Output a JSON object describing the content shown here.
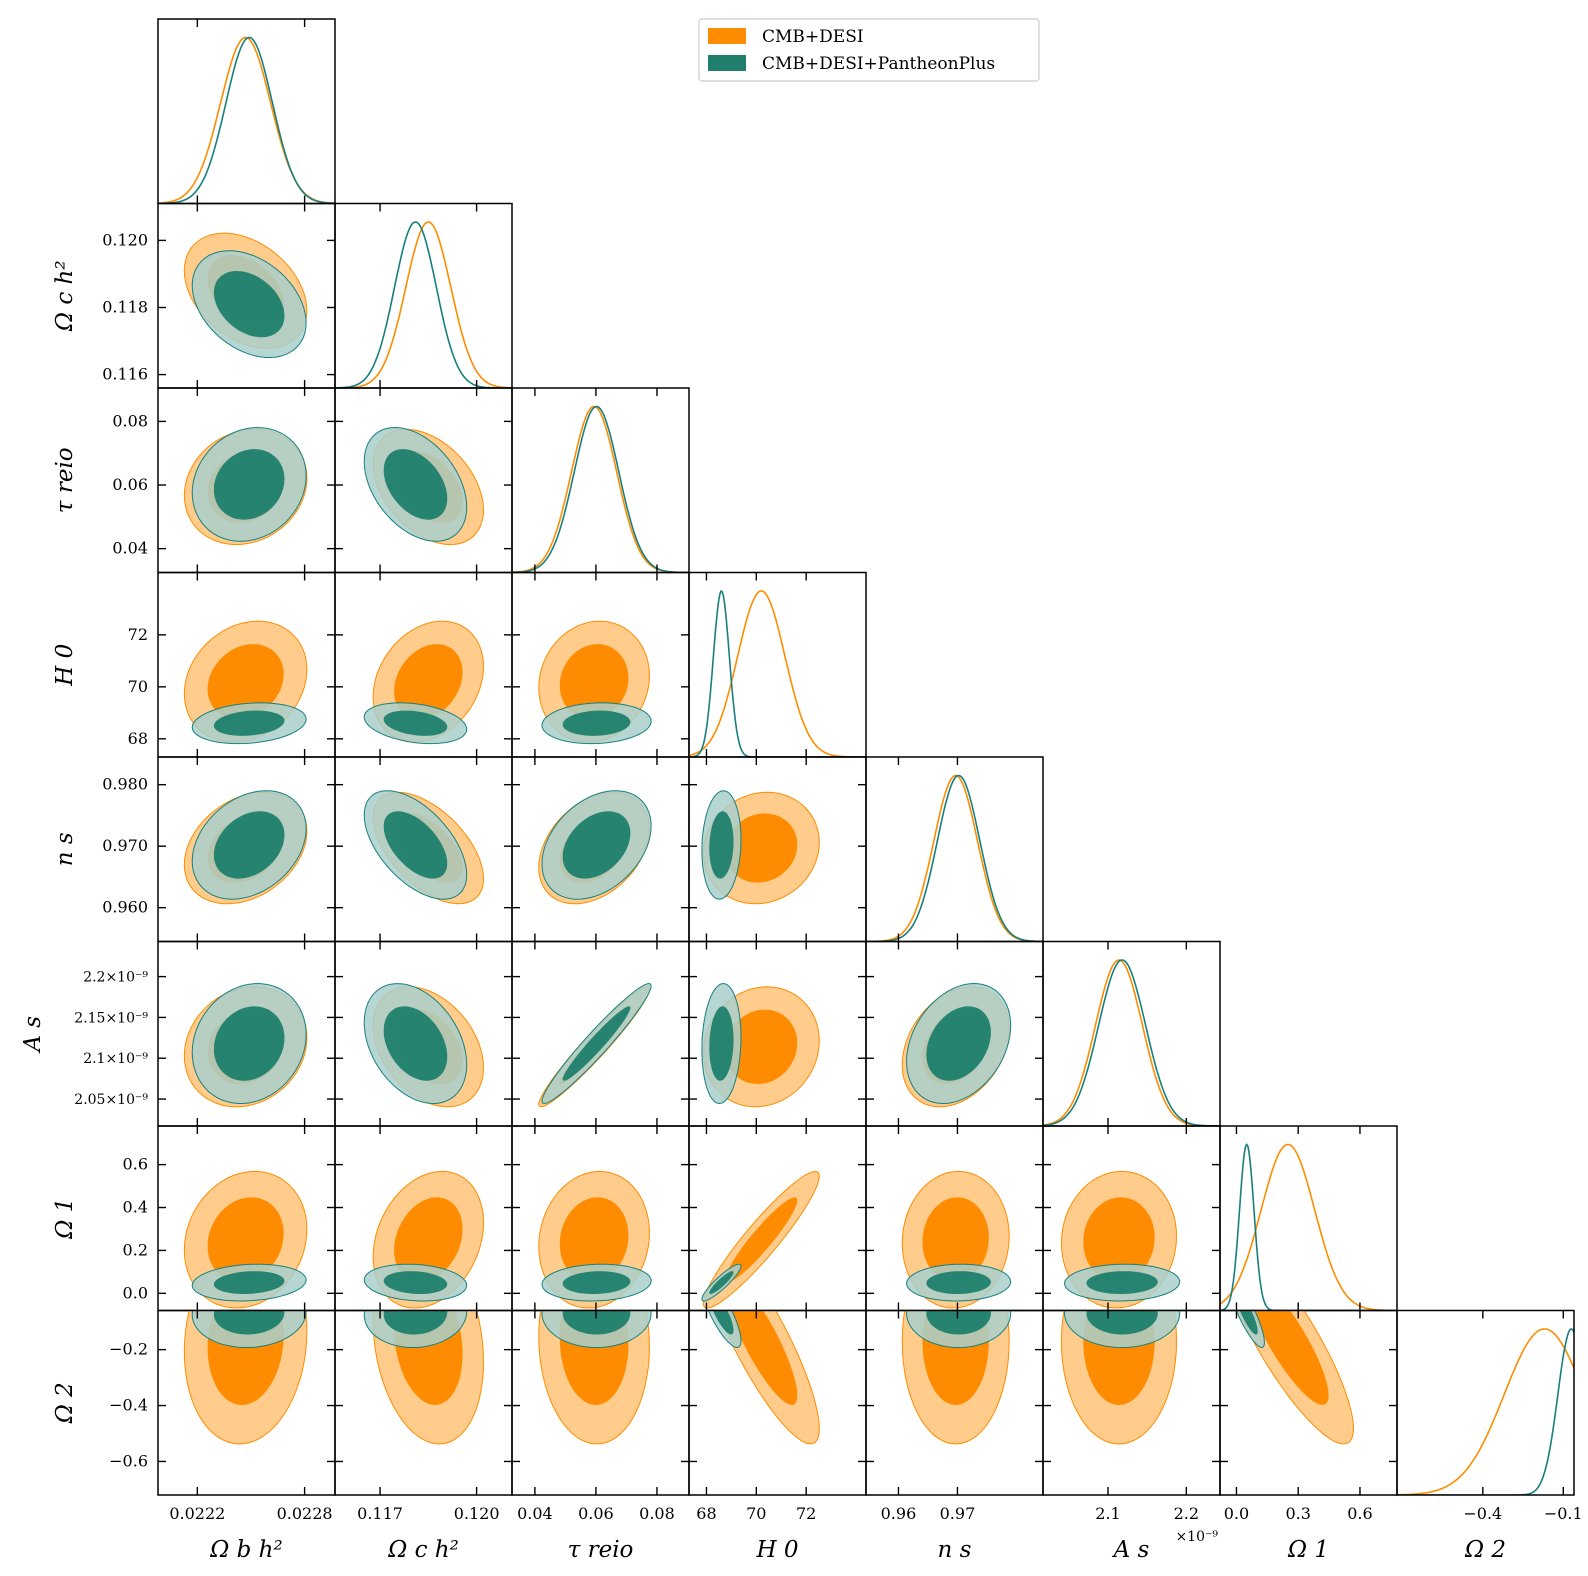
{
  "chart_data": {
    "type": "scatter",
    "title": "",
    "kind": "corner-plot",
    "parameters": [
      {
        "key": "ob",
        "label": "Ω_b h^2",
        "ticks": [
          0.0222,
          0.0228
        ],
        "tick_labels": [
          "0.0222",
          "0.0228"
        ],
        "range": [
          0.02198,
          0.02297
        ],
        "mean": {
          "a": 0.02247,
          "b": 0.02249
        },
        "sd": {
          "a": 0.00014,
          "b": 0.00013
        }
      },
      {
        "key": "oc",
        "label": "Ω_c h^2",
        "ticks": [
          0.117,
          0.12
        ],
        "tick_labels": [
          "0.117",
          "0.120"
        ],
        "ytick_labels": [
          "0.116",
          "0.118",
          "0.120"
        ],
        "yticks": [
          0.116,
          0.118,
          0.12
        ],
        "range": [
          0.1156,
          0.1211
        ],
        "mean": {
          "a": 0.1185,
          "b": 0.1181
        },
        "sd": {
          "a": 0.0007,
          "b": 0.00065
        }
      },
      {
        "key": "tau",
        "label": "τ_reio",
        "ticks": [
          0.04,
          0.06,
          0.08
        ],
        "tick_labels": [
          "0.04",
          "0.06",
          "0.08"
        ],
        "range": [
          0.0325,
          0.0905
        ],
        "mean": {
          "a": 0.0594,
          "b": 0.0602
        },
        "sd": {
          "a": 0.0074,
          "b": 0.0073
        }
      },
      {
        "key": "h0",
        "label": "H_0",
        "ticks": [
          68,
          70,
          72
        ],
        "tick_labels": [
          "68",
          "70",
          "72"
        ],
        "range": [
          67.3,
          74.4
        ],
        "mean": {
          "a": 70.2,
          "b": 68.6
        },
        "sd": {
          "a": 0.95,
          "b": 0.32
        }
      },
      {
        "key": "ns",
        "label": "n_s",
        "ticks": [
          0.96,
          0.97
        ],
        "tick_labels": [
          "0.96",
          "0.97"
        ],
        "ytick_labels": [
          "0.960",
          "0.970",
          "0.980"
        ],
        "yticks": [
          0.96,
          0.97,
          0.98
        ],
        "range": [
          0.9545,
          0.9845
        ],
        "mean": {
          "a": 0.9697,
          "b": 0.9702
        },
        "sd": {
          "a": 0.0037,
          "b": 0.0036
        }
      },
      {
        "key": "as",
        "label": "A_s",
        "ticks": [
          2.1e-09,
          2.2e-09
        ],
        "tick_labels": [
          "2.1",
          "2.2"
        ],
        "ytick_labels": [
          "2.05×10^-9",
          "2.1×10^-9",
          "2.15×10^-9",
          "2.2×10^-9"
        ],
        "yticks": [
          2.05e-09,
          2.1e-09,
          2.15e-09,
          2.2e-09
        ],
        "range": [
          2.017e-09,
          2.243e-09
        ],
        "mean": {
          "a": 2.114e-09,
          "b": 2.118e-09
        },
        "sd": {
          "a": 3e-11,
          "b": 3e-11
        },
        "multiplier": "×10^-9"
      },
      {
        "key": "o1",
        "label": "Ω_1",
        "ticks": [
          0.0,
          0.3,
          0.6
        ],
        "tick_labels": [
          "0.0",
          "0.3",
          "0.6"
        ],
        "ytick_labels": [
          "0.0",
          "0.2",
          "0.4",
          "0.6"
        ],
        "yticks": [
          0.0,
          0.2,
          0.4,
          0.6
        ],
        "range": [
          -0.08,
          0.78
        ],
        "mean": {
          "a": 0.25,
          "b": 0.05
        },
        "sd": {
          "a": 0.13,
          "b": 0.035
        }
      },
      {
        "key": "o2",
        "label": "Ω_2",
        "ticks": [
          -0.4,
          -0.1
        ],
        "tick_labels": [
          "−0.4",
          "−0.1"
        ],
        "ytick_labels": [
          "−0.2",
          "−0.4",
          "−0.6"
        ],
        "yticks": [
          -0.2,
          -0.4,
          -0.6
        ],
        "range": [
          -0.72,
          -0.06
        ],
        "mean": {
          "a": -0.17,
          "b": -0.07
        },
        "sd": {
          "a": 0.15,
          "b": 0.05
        }
      }
    ],
    "series": [
      {
        "name": "CMB+DESI",
        "id": "a",
        "line_color": "#ff8c00",
        "fill_inner": "#ff8c00",
        "fill_outer": "#ffcc8c"
      },
      {
        "name": "CMB+DESI+PantheonPlus",
        "id": "b",
        "line_color": "#17807e",
        "fill_inner": "#1f7f6c",
        "fill_outer": "#a9cfcb"
      }
    ],
    "correlations": {
      "a": {
        "ob-oc": -0.35,
        "ob-tau": 0.15,
        "ob-h0": 0.2,
        "ob-ns": 0.3,
        "ob-as": 0.15,
        "ob-o1": 0.15,
        "ob-o2": 0.1,
        "oc-tau": -0.4,
        "oc-h0": 0.25,
        "oc-ns": -0.55,
        "oc-as": -0.35,
        "oc-o1": 0.25,
        "oc-o2": -0.2,
        "tau-h0": 0.1,
        "tau-ns": 0.35,
        "tau-as": 0.96,
        "tau-o1": 0.1,
        "tau-o2": -0.05,
        "h0-ns": 0.1,
        "h0-as": 0.1,
        "h0-o1": 0.93,
        "h0-o2": -0.85,
        "ns-as": 0.3,
        "ns-o1": 0.05,
        "ns-o2": 0.0,
        "as-o1": 0.05,
        "as-o2": 0.0,
        "o1-o2": -0.85
      },
      "b": {
        "ob-oc": -0.35,
        "ob-tau": 0.15,
        "ob-h0": 0.2,
        "ob-ns": 0.3,
        "ob-as": 0.15,
        "ob-o1": 0.15,
        "ob-o2": 0.05,
        "oc-tau": -0.4,
        "oc-h0": -0.3,
        "oc-ns": -0.55,
        "oc-as": -0.35,
        "oc-o1": -0.15,
        "oc-o2": 0.05,
        "tau-h0": 0.1,
        "tau-ns": 0.35,
        "tau-as": 0.96,
        "tau-o1": 0.1,
        "tau-o2": 0.0,
        "h0-ns": 0.1,
        "h0-as": 0.1,
        "h0-o1": 0.9,
        "h0-o2": -0.8,
        "ns-as": 0.3,
        "ns-o1": 0.05,
        "ns-o2": 0.0,
        "as-o1": 0.05,
        "as-o2": 0.0,
        "o1-o2": -0.85
      }
    },
    "legend": {
      "placement": "top-center",
      "entries": [
        "CMB+DESI",
        "CMB+DESI+PantheonPlus"
      ]
    },
    "annotations": [
      "×10^-9"
    ]
  }
}
